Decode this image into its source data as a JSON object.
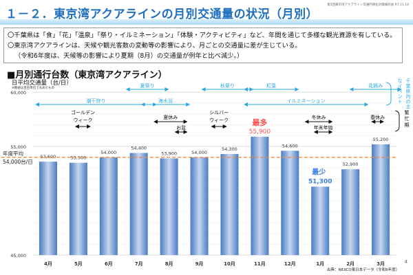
{
  "header": {
    "title": "１－２．東京湾アクアラインの月別交通量の状況（月別）",
    "meeting_label": "第5回東京湾アクアライン交通円滑化対策検討会 R7.11.14"
  },
  "notes": [
    "〇千葉県は「食」「花」「温泉」「祭り・イルミネーション」「体験・アクティビティ」など、年間を通じて多様な観光資源を有している。",
    "〇東京湾アクアラインは、天候や観光客数の変動等の影響により、月ごとの交通量に差が生じている。",
    "（令和6年度は、天候等の影響により夏期（8月）の交通量が例年と比べ減少。）"
  ],
  "section_title": "■月別通行台数（東京湾アクアライン）",
  "y_axis_title": "日平均交通量（台/日）",
  "y_axis_note": "※数値は百台単位で丸めたもの",
  "footer": {
    "source": "出典：NEXCO東日本データ（令和6年度）",
    "page_number": "4"
  },
  "colors": {
    "title": "#1f6fbf",
    "bar": "#4f81c7",
    "bar_highlight": "#c6d6ef",
    "average_line": "#f08a3c",
    "max_label": "#ff4d4d",
    "min_label": "#3a7fe0",
    "event_arrow": "#29a8e0"
  },
  "chart_data": {
    "type": "bar",
    "title": "月別通行台数（東京湾アクアライン）",
    "xlabel": "",
    "ylabel": "日平均交通量（台/日）",
    "ylim": [
      45000,
      60000
    ],
    "y_ticks": [
      {
        "value": 45000,
        "label": "45,000"
      },
      {
        "value": 55000,
        "label": "55,000"
      },
      {
        "value": 60000,
        "label": "60,000"
      }
    ],
    "grid": true,
    "categories": [
      "4月",
      "5月",
      "6月",
      "7月",
      "8月",
      "9月",
      "10月",
      "11月",
      "12月",
      "1月",
      "2月",
      "3月"
    ],
    "values": [
      53600,
      53500,
      54000,
      54400,
      53900,
      54000,
      54300,
      55900,
      54600,
      51300,
      52900,
      55200
    ],
    "value_labels": [
      "53,600",
      "53,500",
      "54,000",
      "54,400",
      "53,900",
      "54,000",
      "54,300",
      "55,900",
      "54,600",
      "51,300",
      "52,900",
      "55,200"
    ],
    "average": {
      "value": 54000,
      "label_line1": "年度平均",
      "label_line2": "54,000台/日"
    },
    "max_annotation": {
      "index": 7,
      "label": "最多"
    },
    "min_annotation": {
      "index": 9,
      "label": "最少"
    },
    "events_group_label": "千葉県内の主なイベント",
    "events": [
      {
        "label": "潮干狩り",
        "from": 0,
        "to": 3.3,
        "row": 2
      },
      {
        "label": "夏祭り",
        "from": 3.0,
        "to": 3.7,
        "row": 1
      },
      {
        "label": "海水浴",
        "from": 3.5,
        "to": 4.4,
        "row": 2
      },
      {
        "label": "秋祭り",
        "from": 5.5,
        "to": 6.5,
        "row": 1
      },
      {
        "label": "紅葉",
        "from": 6.9,
        "to": 8.0,
        "row": 1
      },
      {
        "label": "イルミネーション",
        "from": 6.9,
        "to": 10.3,
        "row": 2
      },
      {
        "label": "花摘み",
        "from": 10.4,
        "to": 11.4,
        "row": 1
      }
    ],
    "busy_group_label": "繁忙期",
    "busy_periods": [
      {
        "label": "ゴールデン",
        "label2": "ウィーク",
        "from": 1.0,
        "to": 1.3,
        "row": 2
      },
      {
        "label": "夏休み",
        "from": 3.6,
        "to": 4.5,
        "row": 1
      },
      {
        "label": "お盆",
        "from": 4.3,
        "to": 4.5,
        "row": 2
      },
      {
        "label": "シルバー",
        "label2": "ウィーク",
        "from": 5.5,
        "to": 5.8,
        "row": 2
      },
      {
        "label": "冬休み",
        "from": 8.6,
        "to": 9.3,
        "row": 1
      },
      {
        "label": "年末年始",
        "from": 8.9,
        "to": 9.3,
        "row": 2
      },
      {
        "label": "春休み",
        "from": 10.8,
        "to": 11.0,
        "row": 1
      }
    ]
  }
}
